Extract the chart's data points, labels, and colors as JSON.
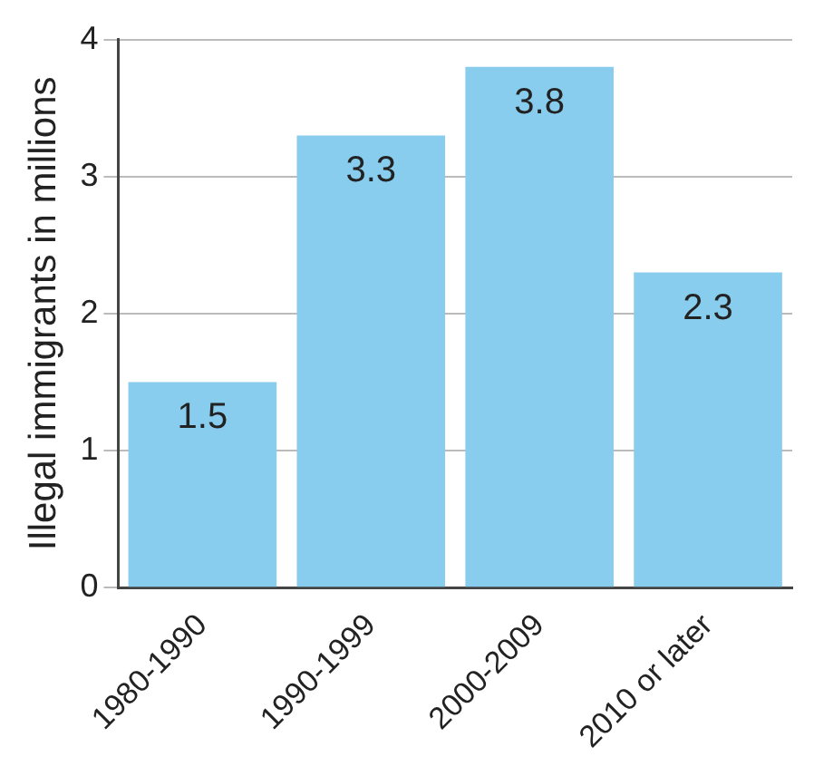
{
  "chart_data": {
    "type": "bar",
    "ylabel": "Illegal immigrants in millions",
    "categories": [
      "1980-1990",
      "1990-1999",
      "2000-2009",
      "2010 or later"
    ],
    "values": [
      1.5,
      3.3,
      3.8,
      2.3
    ],
    "color": "#88ccee",
    "ylim": [
      0,
      4
    ],
    "yticks": [
      0,
      1,
      2,
      3,
      4
    ],
    "grid": "y",
    "data_labels": true
  }
}
